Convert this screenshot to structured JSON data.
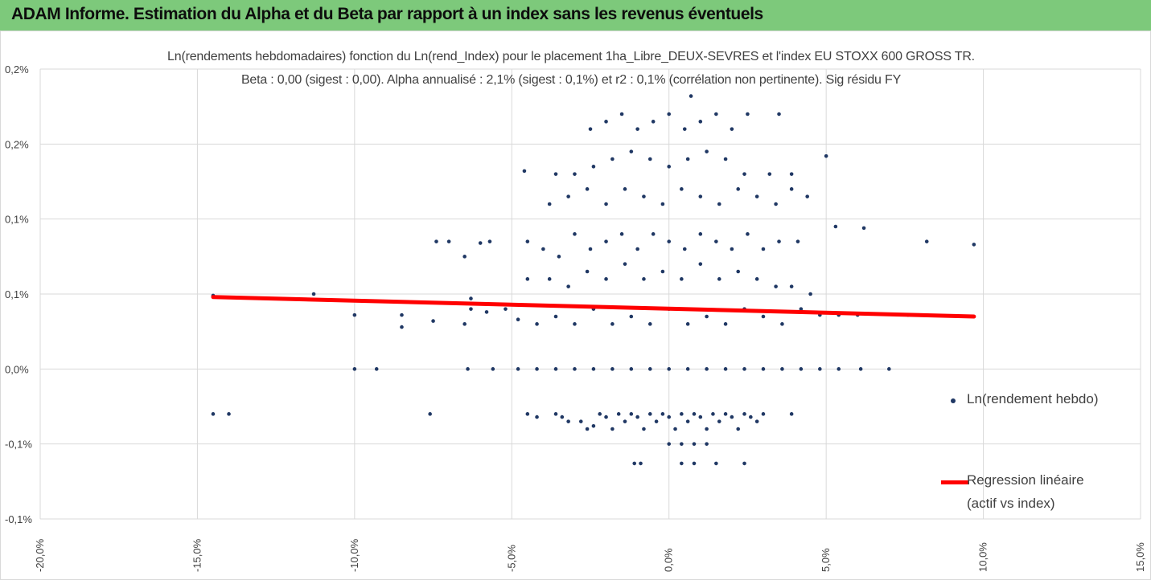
{
  "banner": {
    "title": "ADAM Informe. Estimation du Alpha et du Beta par rapport à un index sans les revenus éventuels"
  },
  "colors": {
    "banner_bg": "#7dc97b",
    "corner_accent": "#f2b705",
    "scatter_points": "#203864",
    "regression_line": "#ff0000",
    "gridlines": "#d9d9d9",
    "text": "#404040"
  },
  "chart_data": {
    "type": "scatter",
    "title_line1": "Ln(rendements hebdomadaires) fonction du Ln(rend_Index) pour le placement 1ha_Libre_DEUX-SEVRES et l'index EU STOXX 600 GROSS TR.",
    "title_line2": "Beta : 0,00 (sigest : 0,00). Alpha annualisé : 2,1% (sigest : 0,1%) et r2 : 0,1% (corrélation non pertinente). Sig résidu FY",
    "xlabel": "",
    "ylabel": "",
    "xlim": [
      -20,
      15
    ],
    "ylim": [
      -0.1,
      0.2
    ],
    "x_ticks": [
      -20,
      -15,
      -10,
      -5,
      0,
      5,
      10,
      15
    ],
    "x_tick_labels": [
      "-20,0%",
      "-15,0%",
      "-10,0%",
      "-5,0%",
      "0,0%",
      "5,0%",
      "10,0%",
      "15,0%"
    ],
    "y_ticks": [
      -0.1,
      -0.05,
      0,
      0.05,
      0.1,
      0.15,
      0.2
    ],
    "y_tick_labels": [
      "-0,1%",
      "-0,1%",
      "0,0%",
      "0,1%",
      "0,1%",
      "0,2%",
      "0,2%"
    ],
    "grid": true,
    "legend_position": "right",
    "series": [
      {
        "name": "Ln(rendement hebdo)",
        "kind": "scatter",
        "points": [
          [
            -14.5,
            -0.03
          ],
          [
            -14,
            -0.03
          ],
          [
            -7.6,
            -0.03
          ],
          [
            -4.5,
            -0.03
          ],
          [
            -4.2,
            -0.032
          ],
          [
            -3.6,
            -0.03
          ],
          [
            -3.4,
            -0.032
          ],
          [
            -3.2,
            -0.035
          ],
          [
            -2.8,
            -0.035
          ],
          [
            -2.6,
            -0.04
          ],
          [
            -2.4,
            -0.038
          ],
          [
            -2.2,
            -0.03
          ],
          [
            -2.0,
            -0.032
          ],
          [
            -1.8,
            -0.04
          ],
          [
            -1.6,
            -0.03
          ],
          [
            -1.4,
            -0.035
          ],
          [
            -1.2,
            -0.03
          ],
          [
            -1.0,
            -0.032
          ],
          [
            -0.8,
            -0.04
          ],
          [
            -0.6,
            -0.03
          ],
          [
            -0.4,
            -0.035
          ],
          [
            -0.2,
            -0.03
          ],
          [
            0.0,
            -0.032
          ],
          [
            0.2,
            -0.04
          ],
          [
            0.4,
            -0.03
          ],
          [
            0.6,
            -0.035
          ],
          [
            0.8,
            -0.03
          ],
          [
            1.0,
            -0.032
          ],
          [
            1.2,
            -0.04
          ],
          [
            1.4,
            -0.03
          ],
          [
            1.6,
            -0.035
          ],
          [
            1.8,
            -0.03
          ],
          [
            2.0,
            -0.032
          ],
          [
            2.2,
            -0.04
          ],
          [
            2.4,
            -0.03
          ],
          [
            2.6,
            -0.032
          ],
          [
            2.8,
            -0.035
          ],
          [
            3.0,
            -0.03
          ],
          [
            3.9,
            -0.03
          ],
          [
            0.0,
            -0.05
          ],
          [
            0.4,
            -0.05
          ],
          [
            0.8,
            -0.05
          ],
          [
            1.2,
            -0.05
          ],
          [
            -1.1,
            -0.063
          ],
          [
            -0.9,
            -0.063
          ],
          [
            0.4,
            -0.063
          ],
          [
            0.8,
            -0.063
          ],
          [
            1.5,
            -0.063
          ],
          [
            2.4,
            -0.063
          ],
          [
            -10,
            0
          ],
          [
            -9.3,
            0
          ],
          [
            -6.4,
            0
          ],
          [
            -5.6,
            0
          ],
          [
            -4.8,
            0
          ],
          [
            -4.2,
            0
          ],
          [
            -3.6,
            0
          ],
          [
            -3.0,
            0
          ],
          [
            -2.4,
            0
          ],
          [
            -1.8,
            0
          ],
          [
            -1.2,
            0
          ],
          [
            -0.6,
            0
          ],
          [
            0,
            0
          ],
          [
            0.6,
            0
          ],
          [
            1.2,
            0
          ],
          [
            1.8,
            0
          ],
          [
            2.4,
            0
          ],
          [
            3.0,
            0
          ],
          [
            3.6,
            0
          ],
          [
            4.2,
            0
          ],
          [
            4.8,
            0
          ],
          [
            5.4,
            0
          ],
          [
            6.1,
            0
          ],
          [
            7.0,
            0
          ],
          [
            -14.5,
            0.049
          ],
          [
            -11.3,
            0.05
          ],
          [
            -10,
            0.036
          ],
          [
            -8.5,
            0.036
          ],
          [
            -8.5,
            0.028
          ],
          [
            -7.5,
            0.032
          ],
          [
            -6.5,
            0.03
          ],
          [
            -6.3,
            0.04
          ],
          [
            -5.8,
            0.038
          ],
          [
            -5.2,
            0.04
          ],
          [
            -4.8,
            0.033
          ],
          [
            -4.2,
            0.03
          ],
          [
            -3.6,
            0.035
          ],
          [
            -3.0,
            0.03
          ],
          [
            -2.4,
            0.04
          ],
          [
            -1.8,
            0.03
          ],
          [
            -1.2,
            0.035
          ],
          [
            -0.6,
            0.03
          ],
          [
            0,
            0.04
          ],
          [
            0.6,
            0.03
          ],
          [
            1.2,
            0.035
          ],
          [
            1.8,
            0.03
          ],
          [
            2.4,
            0.04
          ],
          [
            3.0,
            0.035
          ],
          [
            3.6,
            0.03
          ],
          [
            4.2,
            0.04
          ],
          [
            4.8,
            0.036
          ],
          [
            5.4,
            0.036
          ],
          [
            6.0,
            0.036
          ],
          [
            7.6,
            0.036
          ],
          [
            -6.3,
            0.047
          ],
          [
            -4.5,
            0.06
          ],
          [
            -3.8,
            0.06
          ],
          [
            -3.2,
            0.055
          ],
          [
            -2.6,
            0.065
          ],
          [
            -2.0,
            0.06
          ],
          [
            -1.4,
            0.07
          ],
          [
            -0.8,
            0.06
          ],
          [
            -0.2,
            0.065
          ],
          [
            0.4,
            0.06
          ],
          [
            1.0,
            0.07
          ],
          [
            1.6,
            0.06
          ],
          [
            2.2,
            0.065
          ],
          [
            2.8,
            0.06
          ],
          [
            3.4,
            0.055
          ],
          [
            3.9,
            0.055
          ],
          [
            4.5,
            0.05
          ],
          [
            -7.4,
            0.085
          ],
          [
            -7.0,
            0.085
          ],
          [
            -6.5,
            0.075
          ],
          [
            -6.0,
            0.084
          ],
          [
            -5.7,
            0.085
          ],
          [
            -4.5,
            0.085
          ],
          [
            -4.0,
            0.08
          ],
          [
            -3.5,
            0.075
          ],
          [
            -3.0,
            0.09
          ],
          [
            -2.5,
            0.08
          ],
          [
            -2.0,
            0.085
          ],
          [
            -1.5,
            0.09
          ],
          [
            -1.0,
            0.08
          ],
          [
            -0.5,
            0.09
          ],
          [
            0,
            0.085
          ],
          [
            0.5,
            0.08
          ],
          [
            1.0,
            0.09
          ],
          [
            1.5,
            0.085
          ],
          [
            2.0,
            0.08
          ],
          [
            2.5,
            0.09
          ],
          [
            3.0,
            0.08
          ],
          [
            3.5,
            0.085
          ],
          [
            4.1,
            0.085
          ],
          [
            5.3,
            0.095
          ],
          [
            6.2,
            0.094
          ],
          [
            8.2,
            0.085
          ],
          [
            9.7,
            0.083
          ],
          [
            -3.8,
            0.11
          ],
          [
            -3.2,
            0.115
          ],
          [
            -2.6,
            0.12
          ],
          [
            -2.0,
            0.11
          ],
          [
            -1.4,
            0.12
          ],
          [
            -0.8,
            0.115
          ],
          [
            -0.2,
            0.11
          ],
          [
            0.4,
            0.12
          ],
          [
            1.0,
            0.115
          ],
          [
            1.6,
            0.11
          ],
          [
            2.2,
            0.12
          ],
          [
            2.8,
            0.115
          ],
          [
            3.4,
            0.11
          ],
          [
            3.9,
            0.12
          ],
          [
            4.4,
            0.115
          ],
          [
            -4.6,
            0.132
          ],
          [
            -3.6,
            0.13
          ],
          [
            -3.0,
            0.13
          ],
          [
            -2.4,
            0.135
          ],
          [
            -1.8,
            0.14
          ],
          [
            -1.2,
            0.145
          ],
          [
            -0.6,
            0.14
          ],
          [
            0,
            0.135
          ],
          [
            0.6,
            0.14
          ],
          [
            1.2,
            0.145
          ],
          [
            1.8,
            0.14
          ],
          [
            2.4,
            0.13
          ],
          [
            3.2,
            0.13
          ],
          [
            3.9,
            0.13
          ],
          [
            5.0,
            0.142
          ],
          [
            -2.5,
            0.16
          ],
          [
            -2.0,
            0.165
          ],
          [
            -1.5,
            0.17
          ],
          [
            -1.0,
            0.16
          ],
          [
            -0.5,
            0.165
          ],
          [
            0,
            0.17
          ],
          [
            0.5,
            0.16
          ],
          [
            1.0,
            0.165
          ],
          [
            1.5,
            0.17
          ],
          [
            2.0,
            0.16
          ],
          [
            2.5,
            0.17
          ],
          [
            3.5,
            0.17
          ],
          [
            0.7,
            0.182
          ]
        ]
      },
      {
        "name": "Regression linéaire (actif vs index)",
        "kind": "line",
        "points": [
          [
            -14.5,
            0.048
          ],
          [
            9.7,
            0.035
          ]
        ]
      }
    ],
    "legend": {
      "entry1": "Ln(rendement hebdo)",
      "entry2_line1": "Regression linéaire",
      "entry2_line2": "(actif vs index)"
    }
  }
}
